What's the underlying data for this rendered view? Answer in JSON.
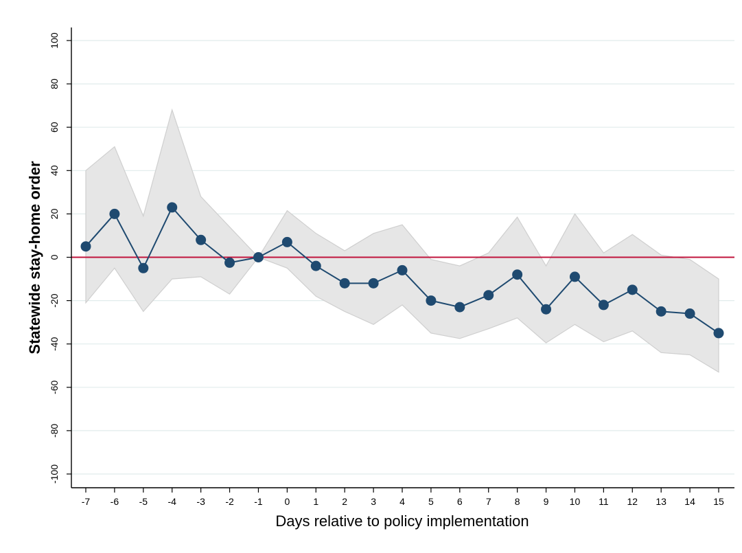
{
  "chart_data": {
    "type": "line",
    "xlabel": "Days relative to policy implementation",
    "ylabel": "Statewide stay-home order",
    "xlim": [
      -7,
      15
    ],
    "ylim": [
      -100,
      100
    ],
    "x_ticks": [
      -7,
      -6,
      -5,
      -4,
      -3,
      -2,
      -1,
      0,
      1,
      2,
      3,
      4,
      5,
      6,
      7,
      8,
      9,
      10,
      11,
      12,
      13,
      14,
      15
    ],
    "y_ticks": [
      -100,
      -80,
      -60,
      -40,
      -20,
      0,
      20,
      40,
      60,
      80,
      100
    ],
    "grid": "horizontal",
    "reference_line": {
      "y": 0,
      "color": "#c0143c"
    },
    "series": [
      {
        "x": [
          -7,
          -6,
          -5,
          -4,
          -3,
          -2,
          -1,
          0,
          1,
          2,
          3,
          4,
          5,
          6,
          7,
          8,
          9,
          10,
          11,
          12,
          13,
          14,
          15
        ],
        "y": [
          5,
          20,
          -5,
          23,
          8,
          -2.5,
          0,
          7,
          -4,
          -12,
          -12,
          -6,
          -20,
          -23,
          -17.5,
          -8,
          -24,
          -9,
          -22,
          -15,
          -25,
          -26,
          -35
        ],
        "color": "#1f4a70"
      }
    ],
    "confidence_band": {
      "x": [
        -7,
        -6,
        -5,
        -4,
        -3,
        -2,
        -1,
        0,
        1,
        2,
        3,
        4,
        5,
        6,
        7,
        8,
        9,
        10,
        11,
        12,
        13,
        14,
        15
      ],
      "upper": [
        40,
        51,
        19,
        68,
        28,
        14,
        0,
        21.5,
        11,
        3,
        11,
        15,
        -1,
        -4,
        2,
        18.5,
        -4,
        20,
        2,
        10.5,
        1,
        -1,
        -10
      ],
      "lower": [
        -21,
        -5,
        -25,
        -10,
        -9,
        -17,
        0,
        -5,
        -18,
        -25,
        -31,
        -22,
        -35,
        -37.5,
        -33,
        -28,
        -39.5,
        -31,
        -39,
        -34,
        -44,
        -45,
        -53
      ],
      "fill": "#e6e6e6",
      "stroke": "#cfcfcf"
    },
    "colors": {
      "gridline": "#e1ecec",
      "axis": "#000000"
    }
  }
}
